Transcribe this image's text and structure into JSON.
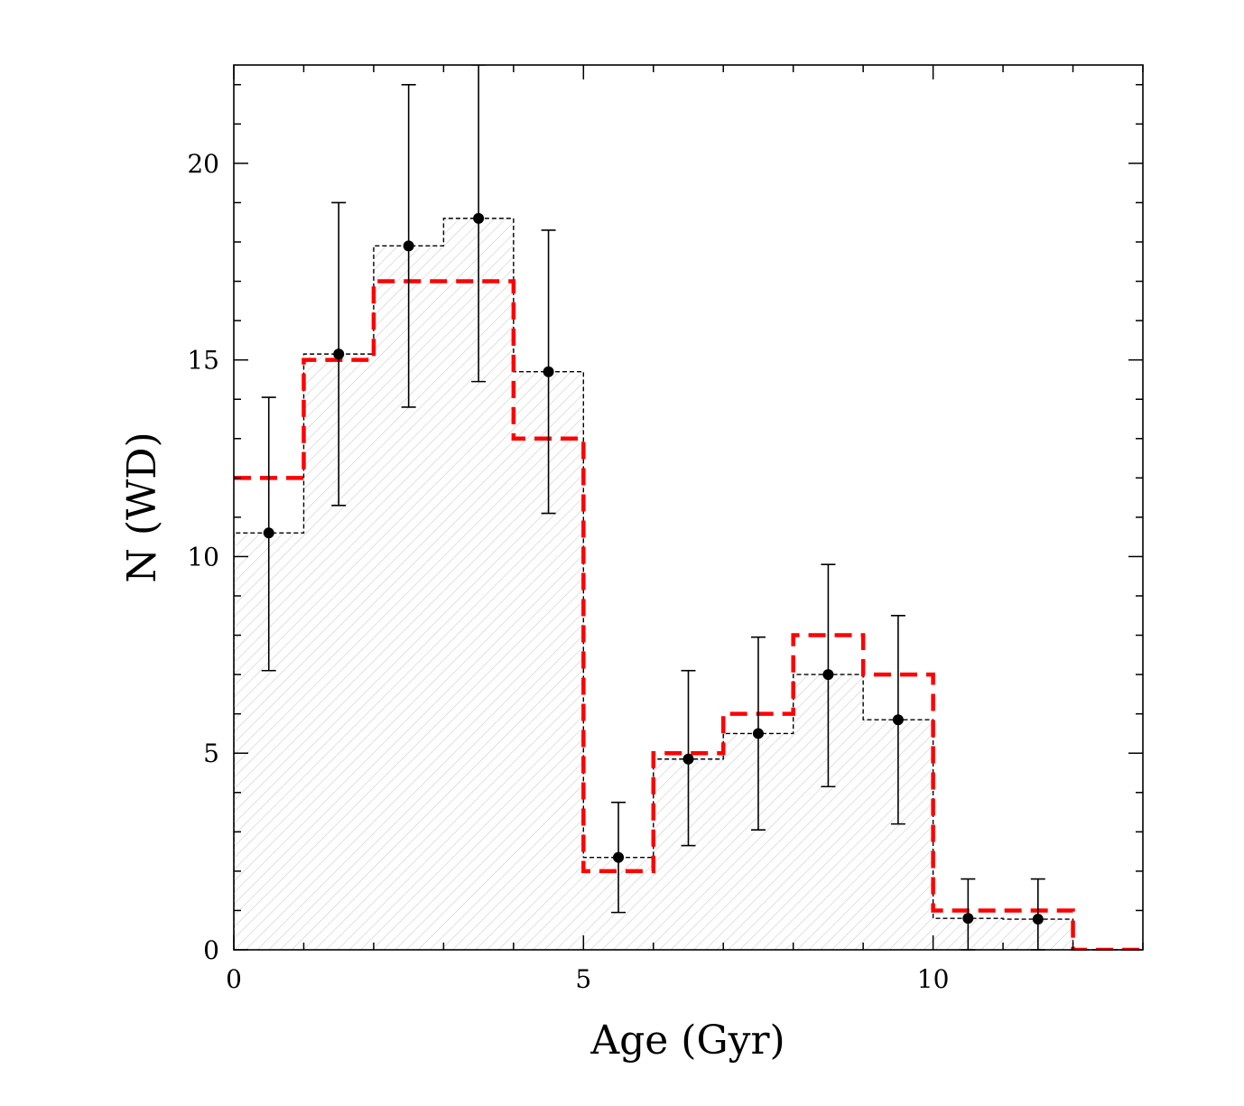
{
  "chart_data": {
    "type": "histogram",
    "title": "",
    "xlabel": "Age (Gyr)",
    "ylabel": "N (WD)",
    "xlim": [
      0,
      13
    ],
    "ylim": [
      0,
      22.5
    ],
    "x_major_ticks": [
      0,
      5,
      10
    ],
    "y_major_ticks": [
      0,
      5,
      10,
      15,
      20
    ],
    "x_minor_step": 1,
    "y_minor_step": 1,
    "grid": false,
    "bin_edges": [
      0,
      1,
      2,
      3,
      4,
      5,
      6,
      7,
      8,
      9,
      10,
      11,
      12,
      13
    ],
    "series": [
      {
        "name": "observed",
        "style": "step-hatched",
        "color": "#000000",
        "fill": "#e6e6e6",
        "values": [
          10.6,
          15.15,
          17.9,
          18.6,
          14.7,
          2.35,
          4.85,
          5.5,
          7.0,
          5.85,
          0.8,
          0.78,
          0.0
        ]
      },
      {
        "name": "model",
        "style": "dashed-step",
        "color": "#ff0000",
        "values": [
          12,
          15,
          17,
          17,
          13,
          2,
          5,
          6,
          8,
          7,
          1,
          1,
          0
        ]
      }
    ],
    "points": {
      "name": "observed-with-errors",
      "color": "#000000",
      "x": [
        0.5,
        1.5,
        2.5,
        3.5,
        4.5,
        5.5,
        6.5,
        7.5,
        8.5,
        9.5,
        10.5,
        11.5
      ],
      "y": [
        10.6,
        15.15,
        17.9,
        18.6,
        14.7,
        2.35,
        4.85,
        5.5,
        7.0,
        5.85,
        0.8,
        0.78
      ],
      "y_low": [
        7.1,
        11.3,
        13.8,
        14.45,
        11.1,
        0.95,
        2.65,
        3.05,
        4.15,
        3.2,
        0.0,
        0.0
      ],
      "y_high": [
        14.05,
        19.0,
        22.0,
        22.5,
        18.3,
        3.75,
        7.1,
        7.95,
        9.8,
        8.5,
        1.8,
        1.8
      ]
    }
  }
}
